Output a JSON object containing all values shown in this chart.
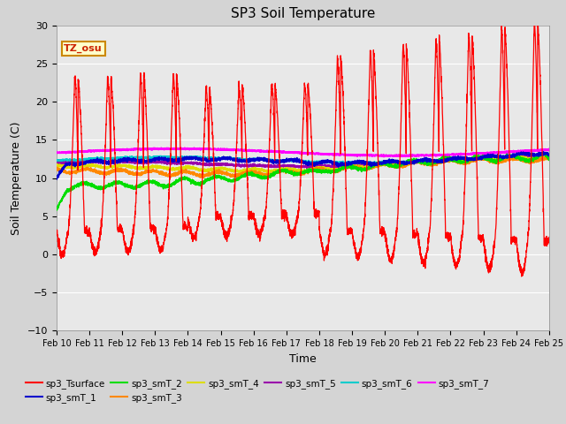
{
  "title": "SP3 Soil Temperature",
  "xlabel": "Time",
  "ylabel": "Soil Temperature (C)",
  "ylim": [
    -10,
    30
  ],
  "fig_bg_color": "#d4d4d4",
  "plot_bg_color": "#e8e8e8",
  "tz_label": "TZ_osu",
  "series_colors": {
    "sp3_Tsurface": "#ff0000",
    "sp3_smT_1": "#0000cc",
    "sp3_smT_2": "#00dd00",
    "sp3_smT_3": "#ff8800",
    "sp3_smT_4": "#dddd00",
    "sp3_smT_5": "#9900aa",
    "sp3_smT_6": "#00cccc",
    "sp3_smT_7": "#ff00ff"
  },
  "grid_color": "#ffffff",
  "yticks": [
    -10,
    -5,
    0,
    5,
    10,
    15,
    20,
    25,
    30
  ]
}
